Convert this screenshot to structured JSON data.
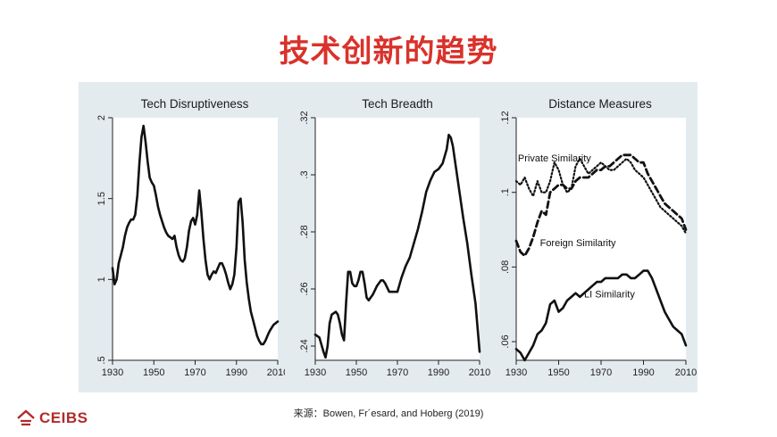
{
  "slide": {
    "title": "技术创新的趋势",
    "source": "来源：Bowen, Fr´esard, and Hoberg (2019)",
    "logo_text": "CEIBS"
  },
  "colors": {
    "title": "#d9322b",
    "panel": "#e3ebef",
    "line": "#111111",
    "logo": "#b22a2a"
  },
  "chart_data": [
    {
      "type": "line",
      "title": "Tech Disruptiveness",
      "xlabel": "",
      "ylabel": "",
      "xlim": [
        1930,
        2010
      ],
      "ylim": [
        0.5,
        2.0
      ],
      "xticks": [
        "1930",
        "1950",
        "1970",
        "1990",
        "2010"
      ],
      "yticks": [
        ".5",
        "1",
        "1.5",
        "2"
      ],
      "series": [
        {
          "style": "solid",
          "x": [
            1930,
            1931,
            1932,
            1933,
            1934,
            1935,
            1936,
            1937,
            1938,
            1939,
            1940,
            1941,
            1942,
            1943,
            1944,
            1945,
            1946,
            1947,
            1948,
            1949,
            1950,
            1951,
            1952,
            1953,
            1954,
            1955,
            1956,
            1957,
            1958,
            1959,
            1960,
            1961,
            1962,
            1963,
            1964,
            1965,
            1966,
            1967,
            1968,
            1969,
            1970,
            1971,
            1972,
            1973,
            1974,
            1975,
            1976,
            1977,
            1978,
            1979,
            1980,
            1981,
            1982,
            1983,
            1984,
            1985,
            1986,
            1987,
            1988,
            1989,
            1990,
            1991,
            1992,
            1993,
            1994,
            1995,
            1996,
            1997,
            1998,
            1999,
            2000,
            2001,
            2002,
            2003,
            2004,
            2005,
            2006,
            2007,
            2008,
            2009,
            2010
          ],
          "y": [
            1.07,
            0.97,
            1.0,
            1.1,
            1.15,
            1.2,
            1.27,
            1.32,
            1.35,
            1.37,
            1.37,
            1.4,
            1.52,
            1.72,
            1.88,
            1.95,
            1.85,
            1.73,
            1.63,
            1.6,
            1.58,
            1.52,
            1.45,
            1.4,
            1.36,
            1.32,
            1.29,
            1.27,
            1.26,
            1.25,
            1.27,
            1.2,
            1.15,
            1.12,
            1.11,
            1.13,
            1.2,
            1.3,
            1.36,
            1.38,
            1.34,
            1.4,
            1.55,
            1.42,
            1.25,
            1.12,
            1.03,
            1.0,
            1.03,
            1.05,
            1.04,
            1.07,
            1.1,
            1.1,
            1.07,
            1.03,
            0.98,
            0.94,
            0.97,
            1.03,
            1.2,
            1.48,
            1.5,
            1.35,
            1.12,
            0.98,
            0.88,
            0.8,
            0.75,
            0.7,
            0.65,
            0.62,
            0.6,
            0.6,
            0.62,
            0.65,
            0.68,
            0.7,
            0.72,
            0.73,
            0.74
          ]
        }
      ]
    },
    {
      "type": "line",
      "title": "Tech Breadth",
      "xlabel": "",
      "ylabel": "",
      "xlim": [
        1930,
        2010
      ],
      "ylim": [
        0.235,
        0.32
      ],
      "xticks": [
        "1930",
        "1950",
        "1970",
        "1990",
        "2010"
      ],
      "yticks": [
        ".24",
        ".26",
        ".28",
        ".3",
        ".32"
      ],
      "series": [
        {
          "style": "solid",
          "x": [
            1930,
            1932,
            1934,
            1935,
            1936,
            1937,
            1938,
            1940,
            1941,
            1942,
            1943,
            1944,
            1945,
            1946,
            1947,
            1948,
            1949,
            1950,
            1951,
            1952,
            1953,
            1954,
            1955,
            1956,
            1958,
            1960,
            1962,
            1963,
            1964,
            1966,
            1968,
            1970,
            1972,
            1974,
            1976,
            1978,
            1980,
            1982,
            1984,
            1986,
            1988,
            1990,
            1992,
            1994,
            1995,
            1996,
            1997,
            1998,
            2000,
            2002,
            2004,
            2006,
            2008,
            2010
          ],
          "y": [
            0.244,
            0.243,
            0.238,
            0.236,
            0.24,
            0.248,
            0.251,
            0.252,
            0.251,
            0.248,
            0.244,
            0.242,
            0.255,
            0.266,
            0.266,
            0.262,
            0.261,
            0.261,
            0.263,
            0.266,
            0.266,
            0.262,
            0.257,
            0.256,
            0.258,
            0.261,
            0.263,
            0.263,
            0.262,
            0.259,
            0.259,
            0.259,
            0.264,
            0.268,
            0.271,
            0.276,
            0.281,
            0.287,
            0.294,
            0.298,
            0.301,
            0.302,
            0.304,
            0.309,
            0.314,
            0.313,
            0.31,
            0.305,
            0.295,
            0.285,
            0.276,
            0.265,
            0.255,
            0.238
          ]
        }
      ]
    },
    {
      "type": "line",
      "title": "Distance Measures",
      "xlabel": "",
      "ylabel": "",
      "xlim": [
        1930,
        2010
      ],
      "ylim": [
        0.055,
        0.12
      ],
      "xticks": [
        "1930",
        "1950",
        "1970",
        "1990",
        "2010"
      ],
      "yticks": [
        ".06",
        ".08",
        ".1",
        ".12"
      ],
      "annotations": [
        {
          "text": "Private Similarity"
        },
        {
          "text": "Foreign Similarity"
        },
        {
          "text": "LI Similarity"
        }
      ],
      "series": [
        {
          "name": "Private Similarity",
          "style": "dotted",
          "x": [
            1930,
            1932,
            1934,
            1936,
            1938,
            1940,
            1942,
            1944,
            1946,
            1948,
            1950,
            1952,
            1954,
            1956,
            1958,
            1960,
            1962,
            1964,
            1966,
            1968,
            1970,
            1972,
            1974,
            1976,
            1978,
            1980,
            1982,
            1984,
            1986,
            1988,
            1990,
            1992,
            1994,
            1996,
            1998,
            2000,
            2002,
            2004,
            2006,
            2008,
            2010
          ],
          "y": [
            0.103,
            0.102,
            0.104,
            0.101,
            0.099,
            0.103,
            0.1,
            0.1,
            0.103,
            0.108,
            0.106,
            0.102,
            0.1,
            0.101,
            0.107,
            0.109,
            0.107,
            0.105,
            0.106,
            0.107,
            0.108,
            0.107,
            0.106,
            0.106,
            0.107,
            0.108,
            0.109,
            0.108,
            0.106,
            0.105,
            0.104,
            0.102,
            0.1,
            0.098,
            0.096,
            0.095,
            0.094,
            0.093,
            0.092,
            0.091,
            0.089
          ]
        },
        {
          "name": "Foreign Similarity",
          "style": "dashed",
          "x": [
            1930,
            1932,
            1934,
            1936,
            1938,
            1940,
            1942,
            1944,
            1946,
            1948,
            1950,
            1952,
            1954,
            1956,
            1958,
            1960,
            1962,
            1964,
            1966,
            1968,
            1970,
            1972,
            1974,
            1976,
            1978,
            1980,
            1982,
            1984,
            1986,
            1988,
            1990,
            1992,
            1994,
            1996,
            1998,
            2000,
            2002,
            2004,
            2006,
            2008,
            2010
          ],
          "y": [
            0.087,
            0.084,
            0.083,
            0.085,
            0.088,
            0.092,
            0.095,
            0.094,
            0.1,
            0.101,
            0.102,
            0.102,
            0.101,
            0.101,
            0.103,
            0.104,
            0.104,
            0.104,
            0.105,
            0.106,
            0.106,
            0.107,
            0.107,
            0.108,
            0.109,
            0.11,
            0.11,
            0.11,
            0.109,
            0.108,
            0.108,
            0.105,
            0.103,
            0.101,
            0.099,
            0.097,
            0.096,
            0.095,
            0.094,
            0.093,
            0.09
          ]
        },
        {
          "name": "LI Similarity",
          "style": "solid",
          "x": [
            1930,
            1932,
            1934,
            1936,
            1938,
            1940,
            1942,
            1944,
            1946,
            1948,
            1950,
            1952,
            1954,
            1956,
            1958,
            1960,
            1962,
            1964,
            1966,
            1968,
            1970,
            1972,
            1974,
            1976,
            1978,
            1980,
            1982,
            1984,
            1986,
            1988,
            1990,
            1992,
            1994,
            1996,
            1998,
            2000,
            2002,
            2004,
            2006,
            2008,
            2010
          ],
          "y": [
            0.058,
            0.057,
            0.055,
            0.057,
            0.059,
            0.062,
            0.063,
            0.065,
            0.07,
            0.071,
            0.068,
            0.069,
            0.071,
            0.072,
            0.073,
            0.072,
            0.073,
            0.074,
            0.075,
            0.076,
            0.076,
            0.077,
            0.077,
            0.077,
            0.077,
            0.078,
            0.078,
            0.077,
            0.077,
            0.078,
            0.079,
            0.079,
            0.077,
            0.074,
            0.071,
            0.068,
            0.066,
            0.064,
            0.063,
            0.062,
            0.059
          ]
        }
      ]
    }
  ]
}
